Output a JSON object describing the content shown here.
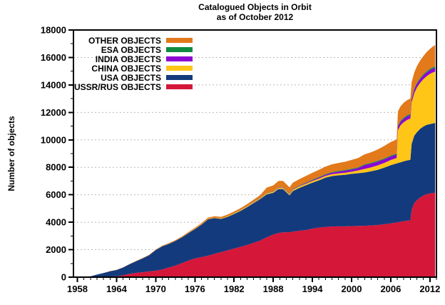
{
  "title": {
    "line1": "Catalogued Objects in Orbit",
    "line2": "as of October 2012"
  },
  "y_axis_label": "Number of objects",
  "legend": {
    "position": "top-left-inside",
    "items": [
      {
        "label": "OTHER OBJECTS",
        "color": "#e2791b",
        "series_key": "other"
      },
      {
        "label": "ESA OBJECTS",
        "color": "#0f8a40",
        "series_key": "esa"
      },
      {
        "label": "INDIA OBJECTS",
        "color": "#8c06d2",
        "series_key": "india"
      },
      {
        "label": "CHINA OBJECTS",
        "color": "#ffc517",
        "series_key": "china"
      },
      {
        "label": "USA OBJECTS",
        "color": "#133a7d",
        "series_key": "usa"
      },
      {
        "label": "USSR/RUS OBJECTS",
        "color": "#d5173a",
        "series_key": "ussr"
      }
    ]
  },
  "chart_data": {
    "type": "area",
    "stacked": true,
    "title": "Catalogued Objects in Orbit as of October 2012",
    "xlabel": "",
    "ylabel": "Number of objects",
    "xlim": [
      1957.4,
      2013.0
    ],
    "ylim": [
      0,
      18000
    ],
    "x_tick_labels": [
      1958,
      1964,
      1970,
      1976,
      1982,
      1988,
      1994,
      2000,
      2006,
      2012
    ],
    "y_tick_labels": [
      0,
      2000,
      4000,
      6000,
      8000,
      10000,
      12000,
      14000,
      16000,
      18000
    ],
    "x_minor_tick_step_years": 1,
    "y_minor_tick_step": 1000,
    "grid": "horizontal-dotted",
    "x": [
      1957.5,
      1958,
      1959,
      1960,
      1961,
      1962,
      1963,
      1964,
      1965,
      1966,
      1967,
      1968,
      1969,
      1970,
      1971,
      1972,
      1973,
      1974,
      1975,
      1976,
      1977,
      1978,
      1979,
      1980,
      1981,
      1982,
      1983,
      1984,
      1985,
      1986,
      1987,
      1988,
      1988.8,
      1989.5,
      1990.5,
      1991,
      1992,
      1993,
      1994,
      1995,
      1996,
      1997,
      1998,
      1999,
      2000,
      2001,
      2002,
      2003,
      2004,
      2005,
      2006,
      2006.9,
      2007.1,
      2007.5,
      2008,
      2008.5,
      2009,
      2009.2,
      2009.6,
      2010,
      2010.5,
      2011,
      2011.5,
      2012,
      2012.3,
      2012.8
    ],
    "stack_order": "bottom_to_top",
    "series": [
      {
        "key": "ussr",
        "name": "USSR/RUS OBJECTS",
        "color": "#d5173a",
        "values": [
          0,
          5,
          10,
          15,
          25,
          35,
          50,
          70,
          130,
          240,
          310,
          360,
          420,
          470,
          560,
          700,
          840,
          1020,
          1200,
          1370,
          1460,
          1560,
          1700,
          1820,
          1950,
          2080,
          2210,
          2340,
          2500,
          2670,
          2900,
          3100,
          3220,
          3260,
          3280,
          3320,
          3380,
          3430,
          3540,
          3610,
          3660,
          3690,
          3700,
          3700,
          3720,
          3730,
          3740,
          3770,
          3800,
          3850,
          3920,
          3980,
          4000,
          4030,
          4080,
          4110,
          4140,
          4900,
          5400,
          5600,
          5800,
          5950,
          6050,
          6100,
          6120,
          6150
        ]
      },
      {
        "key": "usa",
        "name": "USA OBJECTS",
        "color": "#133a7d",
        "values": [
          0,
          15,
          25,
          40,
          160,
          260,
          380,
          450,
          570,
          700,
          850,
          1010,
          1180,
          1500,
          1680,
          1720,
          1790,
          1870,
          2000,
          2130,
          2360,
          2650,
          2600,
          2420,
          2440,
          2520,
          2620,
          2760,
          2900,
          3010,
          3130,
          3040,
          3200,
          3150,
          2680,
          2950,
          3120,
          3260,
          3340,
          3440,
          3580,
          3670,
          3720,
          3750,
          3800,
          3840,
          3880,
          3940,
          4020,
          4120,
          4230,
          4300,
          4310,
          4330,
          4360,
          4390,
          4410,
          4800,
          4900,
          4950,
          5000,
          5020,
          5040,
          5050,
          5060,
          5080
        ]
      },
      {
        "key": "china",
        "name": "CHINA OBJECTS",
        "color": "#ffc517",
        "values": [
          0,
          0,
          0,
          0,
          0,
          0,
          0,
          0,
          0,
          0,
          0,
          0,
          0,
          5,
          8,
          10,
          12,
          15,
          18,
          20,
          22,
          25,
          28,
          30,
          35,
          40,
          45,
          50,
          55,
          60,
          68,
          75,
          80,
          85,
          92,
          100,
          110,
          115,
          120,
          125,
          130,
          135,
          140,
          150,
          160,
          200,
          260,
          290,
          320,
          350,
          380,
          400,
          2400,
          2700,
          2850,
          2950,
          3000,
          3020,
          3100,
          3250,
          3350,
          3450,
          3550,
          3650,
          3700,
          3750
        ]
      },
      {
        "key": "india",
        "name": "INDIA OBJECTS",
        "color": "#8c06d2",
        "values": [
          0,
          0,
          0,
          0,
          0,
          0,
          0,
          0,
          0,
          0,
          0,
          0,
          0,
          0,
          0,
          0,
          0,
          0,
          0,
          0,
          0,
          0,
          0,
          3,
          4,
          6,
          8,
          10,
          12,
          14,
          17,
          20,
          22,
          24,
          26,
          30,
          35,
          45,
          60,
          75,
          90,
          110,
          130,
          150,
          160,
          170,
          280,
          275,
          270,
          265,
          260,
          255,
          255,
          255,
          260,
          260,
          260,
          262,
          265,
          270,
          272,
          275,
          276,
          278,
          279,
          280
        ]
      },
      {
        "key": "esa",
        "name": "ESA OBJECTS",
        "color": "#0f8a40",
        "values": [
          0,
          0,
          0,
          0,
          0,
          0,
          0,
          0,
          0,
          0,
          0,
          0,
          0,
          0,
          0,
          0,
          0,
          0,
          0,
          0,
          0,
          0,
          0,
          5,
          6,
          8,
          10,
          12,
          15,
          18,
          21,
          24,
          25,
          26,
          28,
          30,
          33,
          36,
          39,
          42,
          45,
          48,
          51,
          54,
          57,
          60,
          62,
          64,
          66,
          68,
          70,
          72,
          73,
          74,
          75,
          76,
          77,
          78,
          80,
          82,
          84,
          86,
          87,
          88,
          89,
          90
        ]
      },
      {
        "key": "other",
        "name": "OTHER OBJECTS",
        "color": "#e2791b",
        "values": [
          0,
          0,
          0,
          0,
          0,
          5,
          10,
          12,
          15,
          18,
          20,
          22,
          25,
          35,
          40,
          45,
          50,
          55,
          65,
          75,
          85,
          95,
          105,
          115,
          120,
          125,
          135,
          145,
          165,
          200,
          390,
          420,
          460,
          470,
          440,
          450,
          465,
          480,
          500,
          520,
          545,
          565,
          580,
          600,
          640,
          680,
          720,
          760,
          820,
          900,
          980,
          1020,
          1030,
          1050,
          1080,
          1100,
          1120,
          1130,
          1160,
          1200,
          1260,
          1320,
          1400,
          1450,
          1500,
          1560
        ]
      }
    ],
    "annotations": {
      "events_visible": [
        "step up in CHINA layer at 2007 (large jump)",
        "step up in USSR/RUS and USA layers at 2009",
        "bump and dip in total around 1988-1991"
      ]
    }
  }
}
